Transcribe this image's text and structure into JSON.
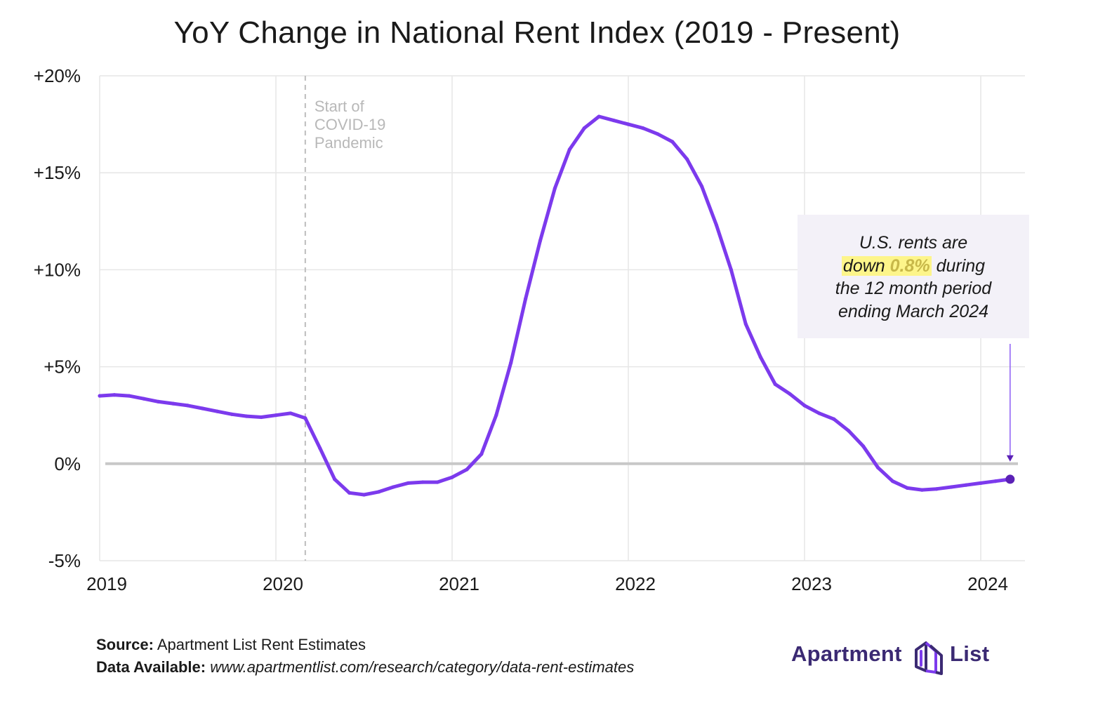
{
  "title": "YoY Change in National Rent Index (2019 - Present)",
  "colors": {
    "line": "#7c3aed",
    "line_dark": "#5b21b6",
    "grid": "#e6e6e6",
    "zero": "#c8c8c8",
    "covid": "#bdbdbd",
    "arrow": "#8b5cf6",
    "callout_bg": "#f3f1f8",
    "highlight": "#fdf58a",
    "brand": "#3b2a73"
  },
  "chart_data": {
    "type": "line",
    "title": "YoY Change in National Rent Index (2019 - Present)",
    "xlabel": "",
    "ylabel": "",
    "ylim": [
      -5,
      20
    ],
    "xlim": [
      "2019-01",
      "2024-03"
    ],
    "yticks": [
      20,
      15,
      10,
      5,
      0,
      -5
    ],
    "ytick_labels": [
      "+20%",
      "+15%",
      "+10%",
      "+5%",
      "0%",
      "-5%"
    ],
    "xticks": [
      "2019",
      "2020",
      "2021",
      "2022",
      "2023",
      "2024"
    ],
    "grid": true,
    "series": [
      {
        "points": [
          [
            "2019-01",
            3.5
          ],
          [
            "2019-02",
            3.55
          ],
          [
            "2019-03",
            3.5
          ],
          [
            "2019-04",
            3.35
          ],
          [
            "2019-05",
            3.2
          ],
          [
            "2019-06",
            3.1
          ],
          [
            "2019-07",
            3.0
          ],
          [
            "2019-08",
            2.85
          ],
          [
            "2019-09",
            2.7
          ],
          [
            "2019-10",
            2.55
          ],
          [
            "2019-11",
            2.45
          ],
          [
            "2019-12",
            2.4
          ],
          [
            "2020-01",
            2.5
          ],
          [
            "2020-02",
            2.6
          ],
          [
            "2020-03",
            2.35
          ],
          [
            "2020-04",
            0.8
          ],
          [
            "2020-05",
            -0.8
          ],
          [
            "2020-06",
            -1.5
          ],
          [
            "2020-07",
            -1.6
          ],
          [
            "2020-08",
            -1.45
          ],
          [
            "2020-09",
            -1.2
          ],
          [
            "2020-10",
            -1.0
          ],
          [
            "2020-11",
            -0.95
          ],
          [
            "2020-12",
            -0.95
          ],
          [
            "2021-01",
            -0.7
          ],
          [
            "2021-02",
            -0.3
          ],
          [
            "2021-03",
            0.5
          ],
          [
            "2021-04",
            2.5
          ],
          [
            "2021-05",
            5.2
          ],
          [
            "2021-06",
            8.5
          ],
          [
            "2021-07",
            11.5
          ],
          [
            "2021-08",
            14.2
          ],
          [
            "2021-09",
            16.2
          ],
          [
            "2021-10",
            17.3
          ],
          [
            "2021-11",
            17.9
          ],
          [
            "2021-12",
            17.7
          ],
          [
            "2022-01",
            17.5
          ],
          [
            "2022-02",
            17.3
          ],
          [
            "2022-03",
            17.0
          ],
          [
            "2022-04",
            16.6
          ],
          [
            "2022-05",
            15.7
          ],
          [
            "2022-06",
            14.3
          ],
          [
            "2022-07",
            12.3
          ],
          [
            "2022-08",
            10.0
          ],
          [
            "2022-09",
            7.2
          ],
          [
            "2022-10",
            5.5
          ],
          [
            "2022-11",
            4.1
          ],
          [
            "2022-12",
            3.6
          ],
          [
            "2023-01",
            3.0
          ],
          [
            "2023-02",
            2.6
          ],
          [
            "2023-03",
            2.3
          ],
          [
            "2023-04",
            1.7
          ],
          [
            "2023-05",
            0.9
          ],
          [
            "2023-06",
            -0.2
          ],
          [
            "2023-07",
            -0.9
          ],
          [
            "2023-08",
            -1.25
          ],
          [
            "2023-09",
            -1.35
          ],
          [
            "2023-10",
            -1.3
          ],
          [
            "2023-11",
            -1.2
          ],
          [
            "2023-12",
            -1.1
          ],
          [
            "2024-01",
            -1.0
          ],
          [
            "2024-02",
            -0.9
          ],
          [
            "2024-03",
            -0.8
          ]
        ]
      }
    ],
    "annotations": [
      {
        "x": "2020-03",
        "label_lines": [
          "Start of",
          "COVID-19",
          "Pandemic"
        ]
      }
    ]
  },
  "callout": {
    "line1": "U.S. rents are",
    "highlight_prefix": "down ",
    "highlight_value": "0.8%",
    "line2_suffix": " during",
    "line3": "the 12 month period",
    "line4": "ending March 2024"
  },
  "footer": {
    "source_label": "Source:",
    "source_text": " Apartment List Rent Estimates",
    "data_label": "Data Available:",
    "data_text": " www.apartmentlist.com/research/category/data-rent-estimates"
  },
  "logo": {
    "word1": "Apartment",
    "word2": "List",
    "icon": "apartment-list-logo-icon"
  }
}
